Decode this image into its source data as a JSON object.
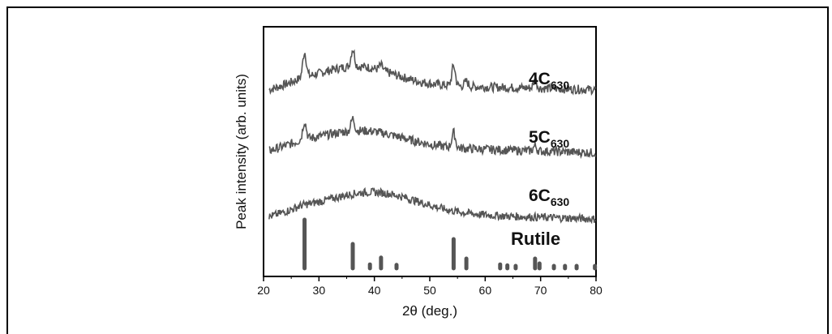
{
  "chart_data": {
    "type": "line",
    "xlabel": "2θ (deg.)",
    "ylabel": "Peak intensity (arb. units)",
    "xlim": [
      20,
      80
    ],
    "xticks": [
      20,
      30,
      40,
      50,
      60,
      70,
      80
    ],
    "y_ticks_shown": false,
    "grid": false,
    "line_color": "#555555",
    "series": [
      {
        "name": "4C",
        "subscript": "630",
        "baseline": 0.78,
        "slope": 0.008,
        "hump": {
          "center": 37,
          "width": 9,
          "height": 0.07
        },
        "peaks": [
          {
            "x": 27.4,
            "h": 0.1
          },
          {
            "x": 36.1,
            "h": 0.07
          },
          {
            "x": 41.2,
            "h": 0.02
          },
          {
            "x": 54.3,
            "h": 0.08
          },
          {
            "x": 56.6,
            "h": 0.02
          },
          {
            "x": 69.0,
            "h": 0.03
          }
        ],
        "noise": 0.018
      },
      {
        "name": "5C",
        "subscript": "630",
        "baseline": 0.535,
        "slope": 0.01,
        "hump": {
          "center": 38,
          "width": 10,
          "height": 0.06
        },
        "peaks": [
          {
            "x": 27.4,
            "h": 0.07
          },
          {
            "x": 36.1,
            "h": 0.05
          },
          {
            "x": 54.3,
            "h": 0.06
          },
          {
            "x": 69.0,
            "h": 0.02
          }
        ],
        "noise": 0.018
      },
      {
        "name": "6C",
        "subscript": "630",
        "baseline": 0.27,
        "slope": 0.01,
        "hump": {
          "center": 40,
          "width": 11,
          "height": 0.08
        },
        "peaks": [],
        "noise": 0.016
      }
    ],
    "reference": {
      "name": "Rutile",
      "x": [
        27.4,
        36.1,
        39.2,
        41.2,
        44.0,
        54.3,
        56.6,
        62.7,
        64.0,
        65.5,
        69.0,
        69.8,
        72.4,
        74.4,
        76.5,
        79.8
      ],
      "values": [
        100,
        50,
        8,
        22,
        7,
        60,
        20,
        8,
        6,
        5,
        20,
        10,
        3,
        3,
        3,
        3
      ]
    }
  }
}
